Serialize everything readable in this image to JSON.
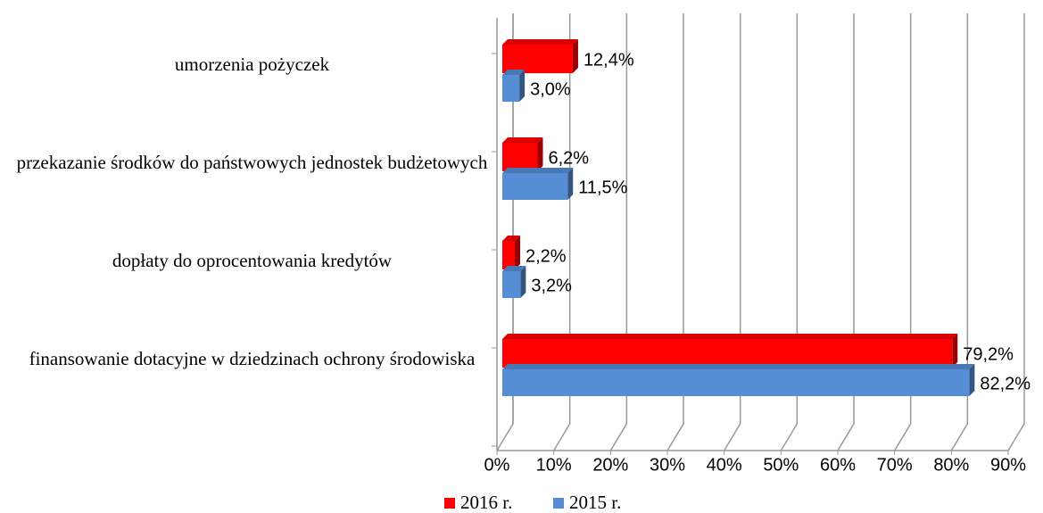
{
  "chart_data": {
    "type": "bar",
    "orientation": "horizontal",
    "categories": [
      "umorzenia pożyczek",
      "przekazanie środków do państwowych jednostek budżetowych",
      "dopłaty do oprocentowania kredytów",
      "finansowanie dotacyjne w dziedzinach ochrony środowiska"
    ],
    "series": [
      {
        "name": "2016 r.",
        "color": "#ff0000",
        "values": [
          12.4,
          6.2,
          2.2,
          79.2
        ],
        "value_labels": [
          "12,4%",
          "6,2%",
          "2,2%",
          "79,2%"
        ]
      },
      {
        "name": "2015 r.",
        "color": "#558ed5",
        "values": [
          3.0,
          11.5,
          3.2,
          82.2
        ],
        "value_labels": [
          "3,0%",
          "11,5%",
          "3,2%",
          "82,2%"
        ]
      }
    ],
    "xlim": [
      0,
      90
    ],
    "xticks": [
      {
        "value": 0,
        "label": "0%"
      },
      {
        "value": 10,
        "label": "10%"
      },
      {
        "value": 20,
        "label": "20%"
      },
      {
        "value": 30,
        "label": "30%"
      },
      {
        "value": 40,
        "label": "40%"
      },
      {
        "value": 50,
        "label": "50%"
      },
      {
        "value": 60,
        "label": "60%"
      },
      {
        "value": 70,
        "label": "70%"
      },
      {
        "value": 80,
        "label": "80%"
      },
      {
        "value": 90,
        "label": "90%"
      }
    ],
    "grid": true,
    "legend": "bottom"
  }
}
